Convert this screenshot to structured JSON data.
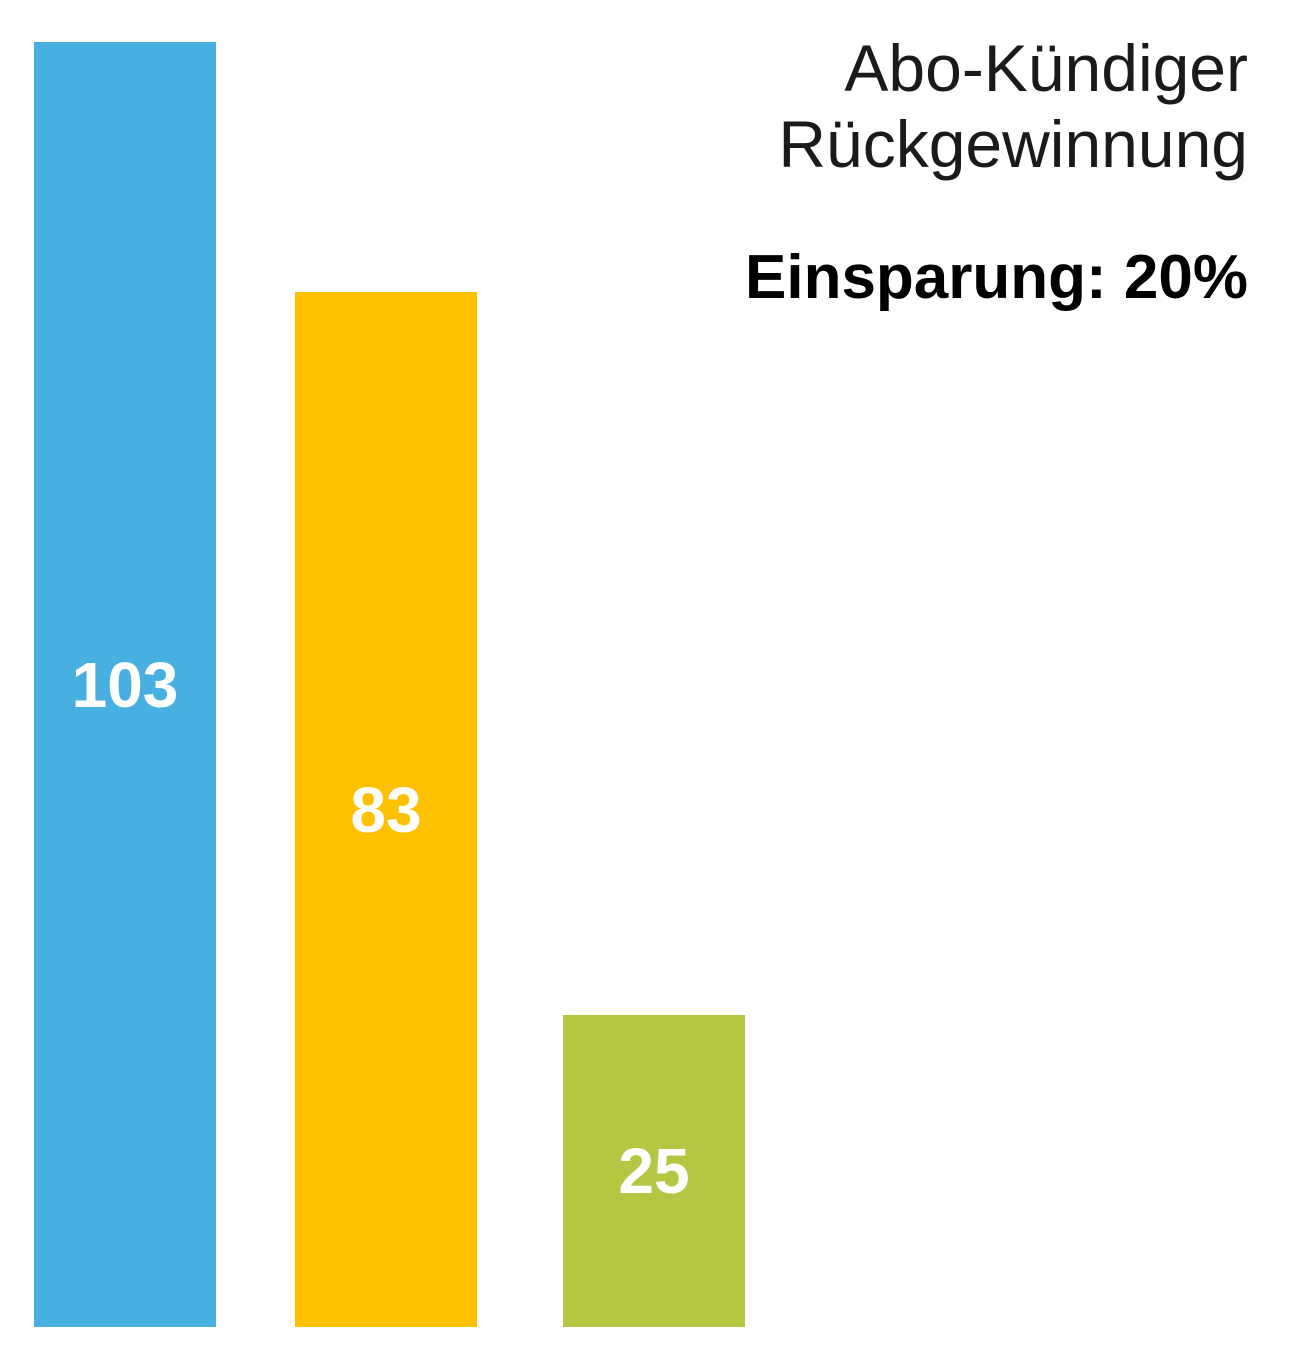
{
  "chart_data": {
    "type": "bar",
    "title": "Abo-Kündiger Rückgewinnung",
    "title_lines": [
      "Abo-Kündiger",
      "Rückgewinnung"
    ],
    "subtitle": "Einsparung: 20%",
    "categories": [
      "",
      "",
      ""
    ],
    "values": [
      103,
      83,
      25
    ],
    "labels": [
      "103",
      "83",
      "25"
    ],
    "colors": [
      "#47b0e0",
      "#ffc000",
      "#b5c642"
    ],
    "xlabel": "",
    "ylabel": "",
    "ylim": [
      0,
      103
    ],
    "grid": false,
    "legend": null
  }
}
